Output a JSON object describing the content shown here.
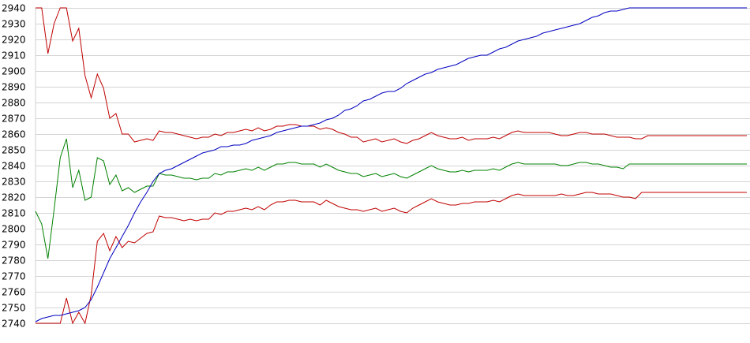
{
  "chart_data": {
    "type": "line",
    "title": "",
    "xlabel": "",
    "ylabel": "",
    "ylim": [
      2740,
      2940
    ],
    "yticks": [
      2740,
      2750,
      2760,
      2770,
      2780,
      2790,
      2800,
      2810,
      2820,
      2830,
      2840,
      2850,
      2860,
      2870,
      2880,
      2890,
      2900,
      2910,
      2920,
      2930,
      2940
    ],
    "grid": true,
    "legend": "none",
    "colors": {
      "grid": "#d4d4d4",
      "upper": "#c00000",
      "middle": "#008000",
      "lower": "#c00000",
      "trend": "#0000c0"
    },
    "x": [
      0,
      1,
      2,
      3,
      4,
      5,
      6,
      7,
      8,
      9,
      10,
      11,
      12,
      13,
      14,
      15,
      16,
      17,
      18,
      19,
      20,
      21,
      22,
      23,
      24,
      25,
      26,
      27,
      28,
      29,
      30,
      31,
      32,
      33,
      34,
      35,
      36,
      37,
      38,
      39,
      40,
      41,
      42,
      43,
      44,
      45,
      46,
      47,
      48,
      49,
      50,
      51,
      52,
      53,
      54,
      55,
      56,
      57,
      58,
      59,
      60,
      61,
      62,
      63,
      64,
      65,
      66,
      67,
      68,
      69,
      70,
      71,
      72,
      73,
      74,
      75,
      76,
      77,
      78,
      79,
      80,
      81,
      82,
      83,
      84,
      85,
      86,
      87,
      88,
      89,
      90,
      91,
      92,
      93,
      94,
      95,
      96,
      97,
      98,
      99,
      100,
      101,
      102,
      103,
      104,
      105,
      106,
      107,
      108,
      109,
      110,
      111,
      112,
      113,
      114,
      115,
      116,
      117
    ],
    "series": [
      {
        "key": "upper",
        "values": [
          2940,
          2940,
          2911,
          2930,
          2940,
          2940,
          2919,
          2927,
          2897,
          2883,
          2898,
          2889,
          2870,
          2873,
          2860,
          2860,
          2855,
          2856,
          2857,
          2856,
          2862,
          2861,
          2861,
          2860,
          2859,
          2858,
          2857,
          2858,
          2858,
          2860,
          2859,
          2861,
          2861,
          2862,
          2863,
          2862,
          2864,
          2862,
          2863,
          2865,
          2865,
          2866,
          2866,
          2865,
          2865,
          2865,
          2863,
          2864,
          2863,
          2861,
          2860,
          2858,
          2858,
          2855,
          2856,
          2857,
          2855,
          2856,
          2857,
          2855,
          2854,
          2856,
          2857,
          2859,
          2861,
          2859,
          2858,
          2857,
          2857,
          2858,
          2856,
          2857,
          2857,
          2857,
          2858,
          2857,
          2859,
          2861,
          2862,
          2861,
          2861,
          2861,
          2861,
          2861,
          2860,
          2859,
          2859,
          2860,
          2861,
          2861,
          2860,
          2860,
          2860,
          2859,
          2858,
          2858,
          2858,
          2857,
          2857,
          2859,
          2859,
          2859,
          2859,
          2859,
          2859,
          2859,
          2859,
          2859,
          2859,
          2859,
          2859,
          2859,
          2859,
          2859,
          2859,
          2859,
          2859,
          2859
        ]
      },
      {
        "key": "middle",
        "values": [
          2811,
          2803,
          2781,
          2812,
          2845,
          2857,
          2826,
          2837,
          2818,
          2820,
          2845,
          2843,
          2828,
          2834,
          2824,
          2826,
          2823,
          2825,
          2827,
          2827,
          2835,
          2834,
          2834,
          2833,
          2832,
          2832,
          2831,
          2832,
          2832,
          2835,
          2834,
          2836,
          2836,
          2837,
          2838,
          2837,
          2839,
          2837,
          2839,
          2841,
          2841,
          2842,
          2842,
          2841,
          2841,
          2841,
          2839,
          2841,
          2839,
          2837,
          2836,
          2835,
          2835,
          2833,
          2834,
          2835,
          2833,
          2834,
          2835,
          2833,
          2832,
          2834,
          2836,
          2838,
          2840,
          2838,
          2837,
          2836,
          2836,
          2837,
          2836,
          2837,
          2837,
          2837,
          2838,
          2837,
          2839,
          2841,
          2842,
          2841,
          2841,
          2841,
          2841,
          2841,
          2841,
          2840,
          2840,
          2841,
          2842,
          2842,
          2841,
          2841,
          2840,
          2839,
          2839,
          2838,
          2841,
          2841,
          2841,
          2841,
          2841,
          2841,
          2841,
          2841,
          2841,
          2841,
          2841,
          2841,
          2841,
          2841,
          2841,
          2841,
          2841,
          2841,
          2841,
          2841,
          2841,
          2841
        ]
      },
      {
        "key": "lower",
        "values": [
          2740,
          2740,
          2740,
          2740,
          2740,
          2756,
          2740,
          2747,
          2740,
          2758,
          2792,
          2797,
          2786,
          2795,
          2788,
          2792,
          2791,
          2794,
          2797,
          2798,
          2808,
          2807,
          2807,
          2806,
          2805,
          2806,
          2805,
          2806,
          2806,
          2810,
          2809,
          2811,
          2811,
          2812,
          2813,
          2812,
          2814,
          2812,
          2815,
          2817,
          2817,
          2818,
          2818,
          2817,
          2817,
          2817,
          2815,
          2818,
          2816,
          2814,
          2813,
          2812,
          2812,
          2811,
          2812,
          2813,
          2811,
          2812,
          2813,
          2811,
          2810,
          2813,
          2815,
          2817,
          2819,
          2817,
          2816,
          2815,
          2815,
          2816,
          2816,
          2817,
          2817,
          2817,
          2818,
          2817,
          2819,
          2821,
          2822,
          2821,
          2821,
          2821,
          2821,
          2821,
          2821,
          2822,
          2821,
          2821,
          2822,
          2823,
          2823,
          2822,
          2822,
          2822,
          2821,
          2820,
          2820,
          2819,
          2823,
          2823,
          2823,
          2823,
          2823,
          2823,
          2823,
          2823,
          2823,
          2823,
          2823,
          2823,
          2823,
          2823,
          2823,
          2823,
          2823,
          2823,
          2823,
          2823
        ]
      },
      {
        "key": "trend",
        "values": [
          2741,
          2743,
          2744,
          2745,
          2745,
          2746,
          2747,
          2748,
          2750,
          2755,
          2763,
          2772,
          2781,
          2788,
          2795,
          2802,
          2810,
          2817,
          2823,
          2830,
          2835,
          2837,
          2838,
          2840,
          2842,
          2844,
          2846,
          2848,
          2849,
          2850,
          2852,
          2852,
          2853,
          2853,
          2854,
          2856,
          2857,
          2858,
          2859,
          2861,
          2862,
          2863,
          2864,
          2865,
          2865,
          2866,
          2867,
          2869,
          2870,
          2872,
          2875,
          2876,
          2878,
          2881,
          2882,
          2884,
          2886,
          2887,
          2887,
          2889,
          2892,
          2894,
          2896,
          2898,
          2899,
          2901,
          2902,
          2903,
          2904,
          2906,
          2908,
          2909,
          2910,
          2910,
          2912,
          2914,
          2915,
          2917,
          2919,
          2920,
          2921,
          2922,
          2924,
          2925,
          2926,
          2927,
          2928,
          2929,
          2930,
          2932,
          2934,
          2935,
          2937,
          2938,
          2938,
          2939,
          2940,
          2940,
          2940,
          2940,
          2940,
          2940,
          2940,
          2940,
          2940,
          2940,
          2940,
          2940,
          2940,
          2940,
          2940,
          2940,
          2940,
          2940,
          2940,
          2940,
          2940,
          2940
        ]
      }
    ]
  }
}
